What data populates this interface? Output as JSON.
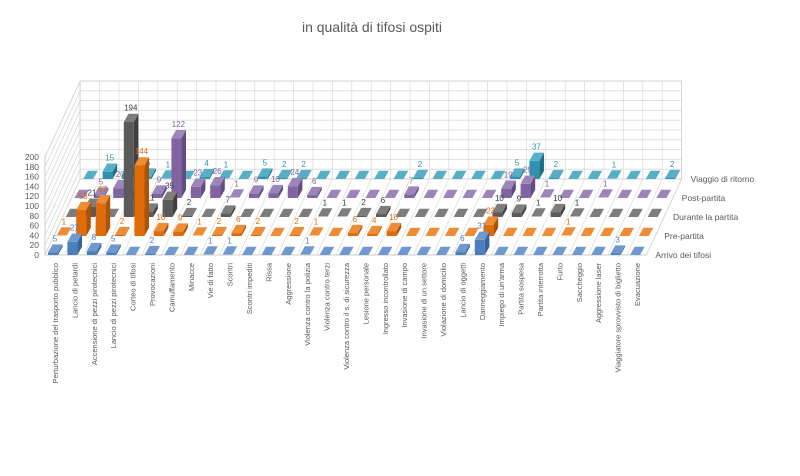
{
  "chart_data": {
    "type": "bar",
    "projection": "3d-depth-series",
    "title": "in qualità di tifosi ospiti",
    "title_color": "#595959",
    "grid": true,
    "ylim": [
      0,
      200
    ],
    "ytick_step": 20,
    "yticks": [
      0,
      20,
      40,
      60,
      80,
      100,
      120,
      140,
      160,
      180,
      200
    ],
    "legend_position": "right-depth-axis",
    "categories": [
      "Perturbazione del trasporto pubblico",
      "Lancio di petardi",
      "Accensione di pezzi pirotecnici",
      "Lancio di pezzi pirotecnici",
      "Corteo di tifosi",
      "Provocazioni",
      "Camuffamento",
      "Minacce",
      "Vie di fatto",
      "Scontri",
      "Scontri impediti",
      "Rissa",
      "Aggressione",
      "Violenza contro la polizia",
      "Violenza contro terzi",
      "Violenza contro il s. di sicurezza",
      "Lesione personale",
      "Ingresso incontrollato",
      "Invasione di campo",
      "Invasione di un settore",
      "Violazione di domicilio",
      "Lancio di oggetti",
      "Danneggiamento",
      "Impiego di un'arma",
      "Partita sospesa",
      "Partita interrotta",
      "Furto",
      "Saccheggio",
      "Aggressione laser",
      "Viaggiatore sprovvisto di biglietto",
      "Evacuazione"
    ],
    "series": [
      {
        "name": "Arrivo dei tifosi",
        "color": "#4A7EBC",
        "top_color": "#6F99CE",
        "side_color": "#38639B",
        "label_color": "#4A7EBC",
        "values": [
          5,
          27,
          8,
          5,
          0,
          2,
          0,
          0,
          1,
          1,
          0,
          0,
          0,
          1,
          0,
          0,
          0,
          0,
          0,
          0,
          0,
          6,
          31,
          0,
          0,
          0,
          0,
          0,
          0,
          3,
          0
        ]
      },
      {
        "name": "Pre-partita",
        "color": "#E06B09",
        "top_color": "#EF8D36",
        "side_color": "#AC5306",
        "label_color": "#E06B09",
        "values": [
          1,
          53,
          67,
          2,
          144,
          10,
          9,
          1,
          2,
          6,
          2,
          0,
          2,
          1,
          0,
          6,
          4,
          10,
          0,
          0,
          0,
          0,
          23,
          0,
          0,
          0,
          1,
          0,
          0,
          0,
          0
        ]
      },
      {
        "name": "Durante la partita",
        "color": "#5A5A5A",
        "top_color": "#7D7D7D",
        "side_color": "#404040",
        "label_color": "#3A3A3A",
        "values": [
          0,
          21,
          0,
          194,
          11,
          35,
          2,
          0,
          7,
          0,
          0,
          0,
          0,
          1,
          1,
          2,
          6,
          0,
          0,
          0,
          0,
          0,
          10,
          9,
          1,
          10,
          1,
          0,
          0,
          0,
          0
        ]
      },
      {
        "name": "Post-partita",
        "color": "#8064A2",
        "top_color": "#9C85B8",
        "side_color": "#624C80",
        "label_color": "#8064A2",
        "values": [
          0,
          5,
          20,
          14,
          9,
          122,
          23,
          26,
          1,
          9,
          10,
          24,
          6,
          0,
          0,
          0,
          0,
          7,
          0,
          0,
          0,
          0,
          19,
          29,
          1,
          0,
          0,
          1,
          0,
          0,
          0
        ]
      },
      {
        "name": "Viaggio di ritorno",
        "color": "#2E93AE",
        "top_color": "#57AFC6",
        "side_color": "#1F7084",
        "label_color": "#2E93AE",
        "values": [
          0,
          15,
          10,
          5,
          1,
          0,
          4,
          1,
          0,
          5,
          2,
          2,
          0,
          0,
          0,
          0,
          0,
          2,
          0,
          0,
          0,
          0,
          5,
          37,
          2,
          0,
          0,
          1,
          0,
          0,
          2
        ]
      }
    ],
    "axis_text_color": "#595959",
    "grid_color": "#D9D9D9",
    "axis_line_color": "#BFBFBF"
  }
}
